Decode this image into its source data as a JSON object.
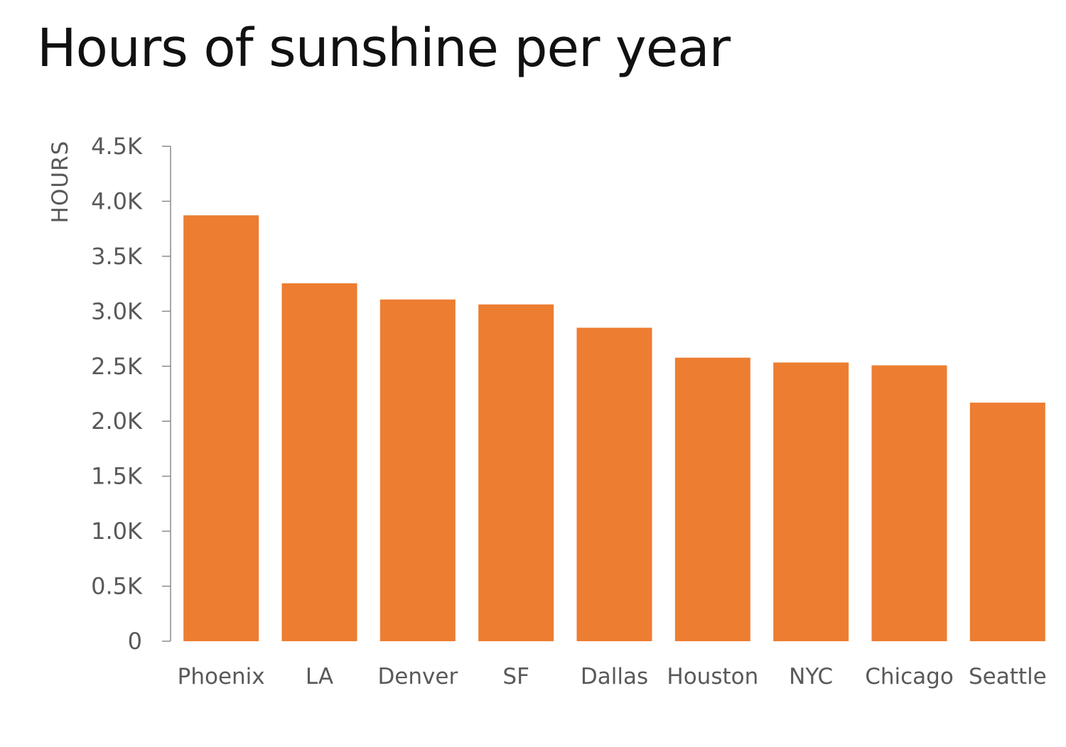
{
  "chart_data": {
    "type": "bar",
    "title": "Hours of sunshine per year",
    "xlabel": "",
    "ylabel": "HOURS",
    "categories": [
      "Phoenix",
      "LA",
      "Denver",
      "SF",
      "Dallas",
      "Houston",
      "NYC",
      "Chicago",
      "Seattle"
    ],
    "values": [
      3872,
      3254,
      3107,
      3062,
      2850,
      2578,
      2534,
      2508,
      2169
    ],
    "ylim": [
      0,
      4500
    ],
    "yticks": [
      0,
      500,
      1000,
      1500,
      2000,
      2500,
      3000,
      3500,
      4000,
      4500
    ],
    "ytick_labels": [
      "0",
      "0.5K",
      "1.0K",
      "1.5K",
      "2.0K",
      "2.5K",
      "3.0K",
      "3.5K",
      "4.0K",
      "4.5K"
    ],
    "grid": false,
    "bar_color": "#ED7D31",
    "axis_color": "#8C8C8C"
  }
}
